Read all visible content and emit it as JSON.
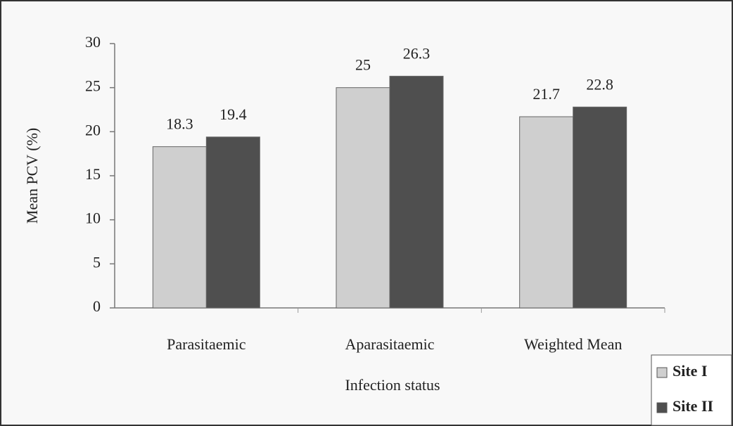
{
  "chart_data": {
    "type": "bar",
    "xlabel": "Infection status",
    "ylabel": "Mean PCV (%)",
    "categories": [
      "Parasitaemic",
      "Aparasitaemic",
      "Weighted Mean"
    ],
    "series": [
      {
        "name": "Site I",
        "color": "#cfcfcf",
        "values": [
          18.3,
          25,
          21.7
        ]
      },
      {
        "name": "Site II",
        "color": "#4f4f4f",
        "values": [
          19.4,
          26.3,
          22.8
        ]
      }
    ],
    "ylim": [
      0,
      30
    ],
    "yticks": [
      0,
      5,
      10,
      15,
      20,
      25,
      30
    ],
    "legend": "bottom-right"
  }
}
